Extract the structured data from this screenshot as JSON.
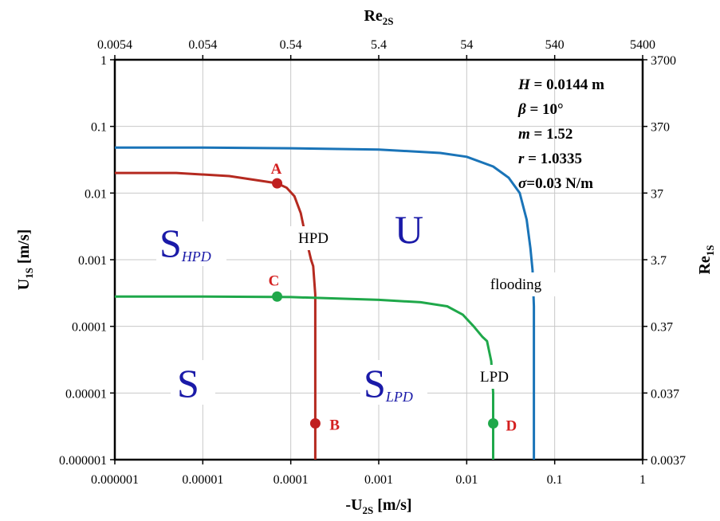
{
  "chart_data": {
    "type": "line",
    "x_scale": "log",
    "y_scale": "log",
    "xlim": [
      1e-06,
      1
    ],
    "ylim": [
      1e-06,
      1
    ],
    "xlabel": {
      "main": "-U",
      "sub": "2S",
      "unit": " [m/s]"
    },
    "ylabel": {
      "main": "U",
      "sub": "1S",
      "unit": " [m/s]"
    },
    "x2label": {
      "main": "Re",
      "sub": "2S"
    },
    "y2label": {
      "main": "Re",
      "sub": "1S"
    },
    "grid": true,
    "x_ticks": [
      "0.000001",
      "0.00001",
      "0.0001",
      "0.001",
      "0.01",
      "0.1",
      "1"
    ],
    "y_ticks": [
      "0.000001",
      "0.00001",
      "0.0001",
      "0.001",
      "0.01",
      "0.1",
      "1"
    ],
    "x2_ticks": [
      "0.0054",
      "0.054",
      "0.54",
      "5.4",
      "54",
      "540",
      "5400"
    ],
    "y2_ticks": [
      "0.0037",
      "0.037",
      "0.37",
      "3.7",
      "37",
      "370",
      "3700"
    ],
    "parameters": [
      {
        "name": "H",
        "value": " = 0.0144 m"
      },
      {
        "name": "β",
        "value": " = 10°"
      },
      {
        "name": "m",
        "value": " = 1.52"
      },
      {
        "name": "r",
        "value": " = 1.0335"
      },
      {
        "name": "σ",
        "value": "=0.03 N/m"
      }
    ],
    "series": [
      {
        "name": "HPD",
        "color": "#b52a20",
        "x": [
          1e-06,
          5e-06,
          2e-05,
          5e-05,
          7e-05,
          9e-05,
          0.00011,
          0.00013,
          0.00015,
          0.00017,
          0.00018,
          0.00019,
          0.00019,
          0.00019,
          0.00019
        ],
        "y": [
          0.02,
          0.02,
          0.018,
          0.015,
          0.014,
          0.012,
          0.009,
          0.005,
          0.002,
          0.001,
          0.0008,
          0.0003,
          0.0001,
          1e-05,
          1e-06
        ]
      },
      {
        "name": "LPD",
        "color": "#1fa84a",
        "x": [
          1e-06,
          1e-05,
          0.0001,
          0.001,
          0.003,
          0.006,
          0.009,
          0.012,
          0.015,
          0.017,
          0.019,
          0.02,
          0.02,
          0.02
        ],
        "y": [
          0.00028,
          0.00028,
          0.000275,
          0.00025,
          0.00023,
          0.0002,
          0.00015,
          0.0001,
          7e-05,
          6e-05,
          3e-05,
          1e-05,
          3e-06,
          1e-06
        ]
      },
      {
        "name": "flooding",
        "color": "#1a74b8",
        "x": [
          1e-06,
          1e-05,
          0.0001,
          0.001,
          0.005,
          0.01,
          0.02,
          0.03,
          0.04,
          0.048,
          0.053,
          0.056,
          0.058,
          0.058,
          0.058
        ],
        "y": [
          0.048,
          0.048,
          0.047,
          0.045,
          0.04,
          0.035,
          0.025,
          0.017,
          0.01,
          0.004,
          0.0015,
          0.0007,
          0.0002,
          1e-05,
          1e-06
        ]
      }
    ],
    "points": [
      {
        "label": "A",
        "x": 7e-05,
        "y": 0.014,
        "color": "#c02020"
      },
      {
        "label": "B",
        "x": 0.00019,
        "y": 3.5e-06,
        "color": "#c02020"
      },
      {
        "label": "C",
        "x": 7e-05,
        "y": 0.00028,
        "color": "#1fa84a"
      },
      {
        "label": "D",
        "x": 0.02,
        "y": 3.5e-06,
        "color": "#1fa84a"
      }
    ],
    "regions": [
      {
        "main": "S",
        "sub": "HPD"
      },
      {
        "main": "U",
        "sub": ""
      },
      {
        "main": "S",
        "sub": ""
      },
      {
        "main": "S",
        "sub": "LPD"
      }
    ],
    "curve_labels": [
      "HPD",
      "flooding",
      "LPD"
    ]
  }
}
